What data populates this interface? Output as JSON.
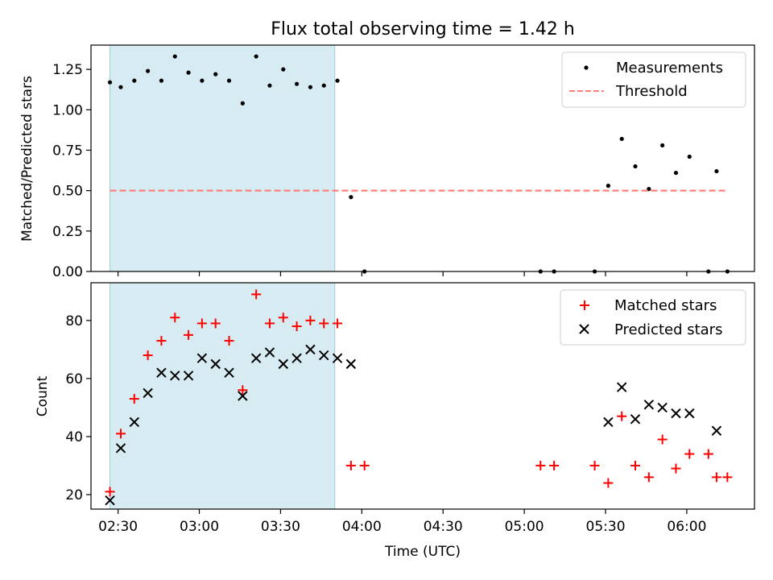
{
  "title": "Flux total observing time = 1.42 h",
  "chart_data": [
    {
      "type": "scatter",
      "ylabel": "Matched/Predicted stars",
      "ylim": [
        0,
        1.4
      ],
      "yticks": [
        0.0,
        0.25,
        0.5,
        0.75,
        1.0,
        1.25
      ],
      "ytick_labels": [
        "0.00",
        "0.25",
        "0.50",
        "0.75",
        "1.00",
        "1.25"
      ],
      "xlim": [
        "02:20",
        "06:25"
      ],
      "grid": false,
      "legend": "top-right",
      "shaded_interval": {
        "x": [
          "02:27",
          "03:50"
        ],
        "color": "#add8e6"
      },
      "series": [
        {
          "name": "Measurements",
          "marker": "dot",
          "color": "#000000",
          "x": [
            "02:27",
            "02:31",
            "02:36",
            "02:41",
            "02:46",
            "02:51",
            "02:56",
            "03:01",
            "03:06",
            "03:11",
            "03:16",
            "03:21",
            "03:26",
            "03:31",
            "03:36",
            "03:41",
            "03:46",
            "03:51",
            "03:56",
            "04:01",
            "05:06",
            "05:11",
            "05:26",
            "05:31",
            "05:36",
            "05:41",
            "05:46",
            "05:51",
            "05:56",
            "06:01",
            "06:08",
            "06:11",
            "06:15"
          ],
          "y": [
            1.17,
            1.14,
            1.18,
            1.24,
            1.18,
            1.33,
            1.23,
            1.18,
            1.22,
            1.18,
            1.04,
            1.33,
            1.15,
            1.25,
            1.16,
            1.14,
            1.15,
            1.18,
            0.46,
            0.0,
            0.0,
            0.0,
            0.0,
            0.53,
            0.82,
            0.65,
            0.51,
            0.78,
            0.61,
            0.71,
            0.0,
            0.62,
            0.0
          ]
        },
        {
          "name": "Threshold",
          "style": "dashed",
          "color": "#ff7f7f",
          "x": [
            "02:27",
            "06:15"
          ],
          "y": [
            0.5,
            0.5
          ]
        }
      ]
    },
    {
      "type": "scatter",
      "ylabel": "Count",
      "xlabel": "Time (UTC)",
      "ylim": [
        15,
        93
      ],
      "yticks": [
        20,
        40,
        60,
        80
      ],
      "ytick_labels": [
        "20",
        "40",
        "60",
        "80"
      ],
      "xlim": [
        "02:20",
        "06:25"
      ],
      "xticks": [
        "02:30",
        "03:00",
        "03:30",
        "04:00",
        "04:30",
        "05:00",
        "05:30",
        "06:00"
      ],
      "grid": false,
      "legend": "top-right",
      "shaded_interval": {
        "x": [
          "02:27",
          "03:50"
        ],
        "color": "#add8e6"
      },
      "series": [
        {
          "name": "Matched stars",
          "marker": "plus",
          "color": "#ff0000",
          "x": [
            "02:27",
            "02:31",
            "02:36",
            "02:41",
            "02:46",
            "02:51",
            "02:56",
            "03:01",
            "03:06",
            "03:11",
            "03:16",
            "03:21",
            "03:26",
            "03:31",
            "03:36",
            "03:41",
            "03:46",
            "03:51",
            "03:56",
            "04:01",
            "05:06",
            "05:11",
            "05:26",
            "05:31",
            "05:36",
            "05:41",
            "05:46",
            "05:51",
            "05:56",
            "06:01",
            "06:08",
            "06:11",
            "06:15"
          ],
          "y": [
            21,
            41,
            53,
            68,
            73,
            81,
            75,
            79,
            79,
            73,
            56,
            89,
            79,
            81,
            78,
            80,
            79,
            79,
            30,
            30,
            30,
            30,
            30,
            24,
            47,
            30,
            26,
            39,
            29,
            34,
            34,
            26,
            26
          ]
        },
        {
          "name": "Predicted stars",
          "marker": "x",
          "color": "#000000",
          "x": [
            "02:27",
            "02:31",
            "02:36",
            "02:41",
            "02:46",
            "02:51",
            "02:56",
            "03:01",
            "03:06",
            "03:11",
            "03:16",
            "03:21",
            "03:26",
            "03:31",
            "03:36",
            "03:41",
            "03:46",
            "03:51",
            "03:56",
            "05:31",
            "05:36",
            "05:41",
            "05:46",
            "05:51",
            "05:56",
            "06:01",
            "06:11"
          ],
          "y": [
            18,
            36,
            45,
            55,
            62,
            61,
            61,
            67,
            65,
            62,
            54,
            67,
            69,
            65,
            67,
            70,
            68,
            67,
            65,
            45,
            57,
            46,
            51,
            50,
            48,
            48,
            42
          ]
        }
      ]
    }
  ]
}
